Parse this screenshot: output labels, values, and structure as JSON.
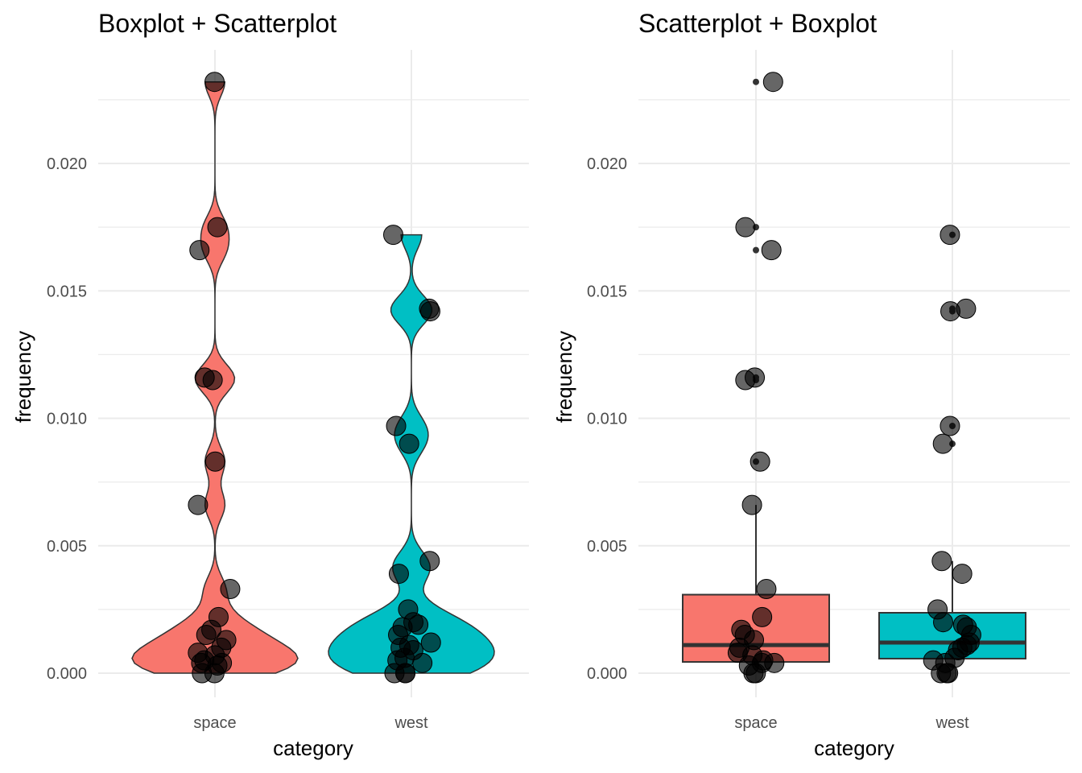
{
  "chart_data": [
    {
      "type": "violin+scatter",
      "title": "Boxplot + Scatterplot",
      "xlabel": "category",
      "ylabel": "frequency",
      "categories": [
        "space",
        "west"
      ],
      "yticks": [
        "0.000",
        "0.005",
        "0.010",
        "0.015",
        "0.020"
      ],
      "ylim": [
        -0.0011,
        0.0243
      ],
      "fill_colors": [
        "#F8766D",
        "#00BFC4"
      ]
    },
    {
      "type": "box+scatter",
      "title": "Scatterplot + Boxplot",
      "xlabel": "category",
      "ylabel": "frequency",
      "categories": [
        "space",
        "west"
      ],
      "yticks": [
        "0.000",
        "0.005",
        "0.010",
        "0.015",
        "0.020"
      ],
      "ylim": [
        -0.0011,
        0.0243
      ],
      "fill_colors": [
        "#F8766D",
        "#00BFC4"
      ],
      "boxes": [
        {
          "category": "space",
          "lower_whisker": 0.0,
          "q1": 0.00044,
          "median": 0.0011,
          "q3": 0.00308,
          "upper_whisker": 0.0066
        },
        {
          "category": "west",
          "lower_whisker": 0.0,
          "q1": 0.00057,
          "median": 0.0012,
          "q3": 0.00237,
          "upper_whisker": 0.0044
        }
      ]
    }
  ],
  "values": {
    "space": [
      0.0232,
      0.0175,
      0.0166,
      0.0116,
      0.0115,
      0.0083,
      0.0066,
      0.0033,
      0.0022,
      0.0017,
      0.0015,
      0.0013,
      0.001,
      0.0008,
      0.0007,
      0.0005,
      0.0004,
      0.0004,
      0.0003,
      0.0,
      0.0
    ],
    "west": [
      0.0172,
      0.0143,
      0.0142,
      0.0097,
      0.009,
      0.0044,
      0.0039,
      0.0025,
      0.002,
      0.0019,
      0.0018,
      0.0015,
      0.0012,
      0.0011,
      0.001,
      0.0009,
      0.0006,
      0.0005,
      0.0004,
      0.0,
      0.0,
      0.0
    ]
  }
}
